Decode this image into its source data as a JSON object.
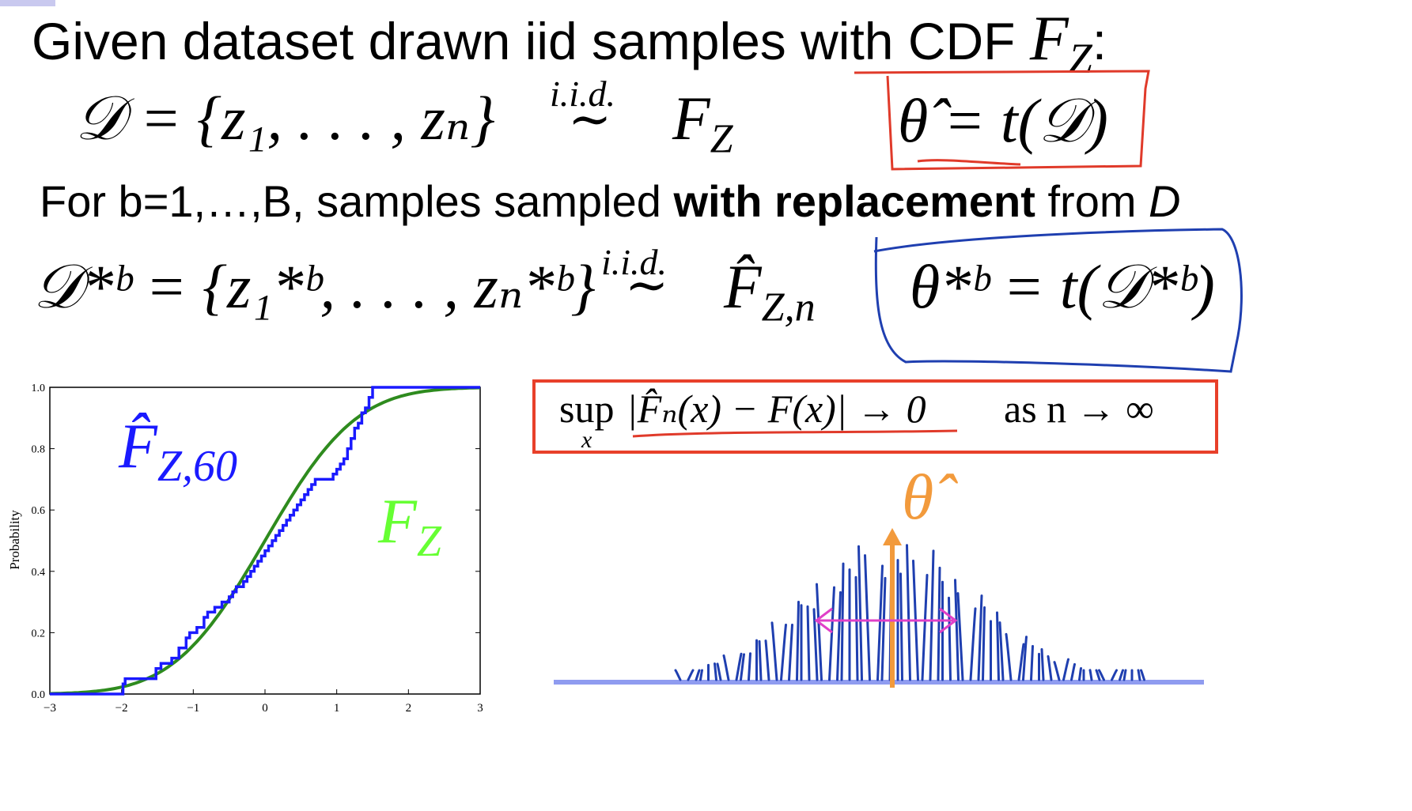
{
  "slide": {
    "line1_text": "Given dataset drawn iid samples with CDF",
    "line1_symbol": "F",
    "line1_sub": "Z",
    "line1_colon": ":",
    "line3_prefix": "For b=1,…,B, samples sampled",
    "line3_bold": "with replacement",
    "line3_mid": "from",
    "line3_italic": "D"
  },
  "equations": {
    "eq1_lhs": "𝒟 = {z₁, . . . , zₙ}",
    "eq1_iid": "i.i.d.",
    "eq1_tilde": "∼",
    "eq1_rhs_F": "F",
    "eq1_rhs_sub": "Z",
    "theta_hat_eq": "θ̂ = t(𝒟)",
    "eq2_lhs": "𝒟*ᵇ = {z₁*ᵇ, . . . , zₙ*ᵇ}",
    "eq2_iid": "i.i.d.",
    "eq2_tilde": "∼",
    "eq2_rhs_F": "F̂",
    "eq2_rhs_sub": "Z,n",
    "theta_star_eq": "θ*ᵇ = t(𝒟*ᵇ)"
  },
  "glivenko": {
    "sup": "sup",
    "sup_sub": "x",
    "expr": "|F̂ₙ(x) − F(x)| → 0",
    "as_text": "as n → ∞"
  },
  "annotation": {
    "theta_hat_label": "θ̂"
  },
  "chart_data": {
    "type": "line",
    "ylabel": "Probability",
    "xlim": [
      -3,
      3
    ],
    "ylim": [
      0,
      1
    ],
    "x_ticks": [
      "−3",
      "−2",
      "−1",
      "0",
      "1",
      "2",
      "3"
    ],
    "y_ticks": [
      "0.0",
      "0.2",
      "0.4",
      "0.6",
      "0.8",
      "1.0"
    ],
    "grid": false,
    "series": [
      {
        "name": "F̂Z,60",
        "label_main": "F̂",
        "label_sub": "Z,60",
        "style": "step",
        "color": "#1a1aff",
        "points": [
          [
            -3,
            0
          ],
          [
            -1.98,
            0
          ],
          [
            -1.98,
            0.033
          ],
          [
            -1.95,
            0.05
          ],
          [
            -1.6,
            0.05
          ],
          [
            -1.52,
            0.083
          ],
          [
            -1.45,
            0.1
          ],
          [
            -1.3,
            0.117
          ],
          [
            -1.2,
            0.15
          ],
          [
            -1.1,
            0.183
          ],
          [
            -1.05,
            0.2
          ],
          [
            -0.95,
            0.217
          ],
          [
            -0.85,
            0.25
          ],
          [
            -0.8,
            0.267
          ],
          [
            -0.7,
            0.283
          ],
          [
            -0.6,
            0.3
          ],
          [
            -0.5,
            0.317
          ],
          [
            -0.45,
            0.333
          ],
          [
            -0.4,
            0.35
          ],
          [
            -0.3,
            0.367
          ],
          [
            -0.25,
            0.383
          ],
          [
            -0.2,
            0.4
          ],
          [
            -0.15,
            0.417
          ],
          [
            -0.1,
            0.433
          ],
          [
            -0.05,
            0.45
          ],
          [
            0.0,
            0.467
          ],
          [
            0.05,
            0.483
          ],
          [
            0.1,
            0.5
          ],
          [
            0.15,
            0.517
          ],
          [
            0.2,
            0.533
          ],
          [
            0.25,
            0.55
          ],
          [
            0.3,
            0.567
          ],
          [
            0.35,
            0.583
          ],
          [
            0.4,
            0.6
          ],
          [
            0.45,
            0.617
          ],
          [
            0.5,
            0.633
          ],
          [
            0.55,
            0.65
          ],
          [
            0.6,
            0.667
          ],
          [
            0.65,
            0.683
          ],
          [
            0.7,
            0.7
          ],
          [
            0.95,
            0.717
          ],
          [
            1.0,
            0.733
          ],
          [
            1.05,
            0.75
          ],
          [
            1.1,
            0.767
          ],
          [
            1.15,
            0.8
          ],
          [
            1.2,
            0.833
          ],
          [
            1.25,
            0.867
          ],
          [
            1.3,
            0.883
          ],
          [
            1.35,
            0.917
          ],
          [
            1.4,
            0.933
          ],
          [
            1.45,
            0.967
          ],
          [
            1.5,
            1.0
          ],
          [
            3,
            1.0
          ]
        ]
      },
      {
        "name": "FZ",
        "label_main": "F",
        "label_sub": "Z",
        "style": "normal_cdf",
        "color": "#2e8b1e",
        "label_color": "#66ff33"
      }
    ]
  }
}
